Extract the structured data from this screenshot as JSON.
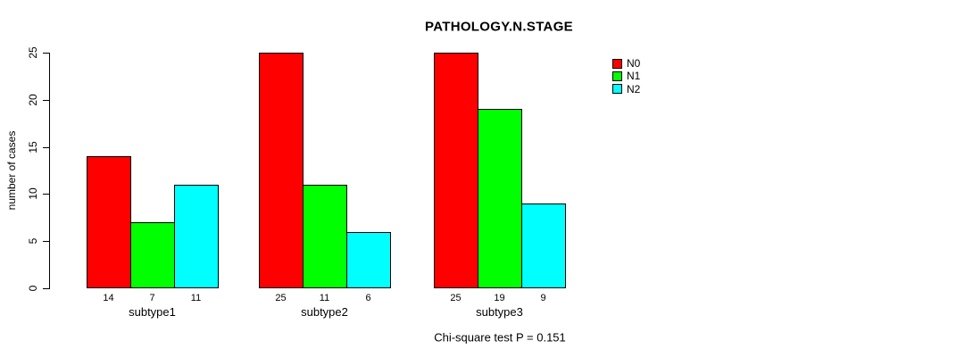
{
  "chart_data": {
    "type": "bar",
    "title": "PATHOLOGY.N.STAGE",
    "ylabel": "number of cases",
    "xlabel": "",
    "categories": [
      "subtype1",
      "subtype2",
      "subtype3"
    ],
    "series": [
      {
        "name": "N0",
        "color": "#FF0000",
        "values": [
          14,
          25,
          25
        ]
      },
      {
        "name": "N1",
        "color": "#00FF00",
        "values": [
          7,
          11,
          19
        ]
      },
      {
        "name": "N2",
        "color": "#00FFFF",
        "values": [
          11,
          6,
          9
        ]
      }
    ],
    "yticks": [
      0,
      5,
      10,
      15,
      20,
      25
    ],
    "ylim": [
      0,
      25
    ],
    "bar_value_labels_shown": true,
    "grid": false,
    "legend_position": "top-right",
    "annotation": "Chi-square test P = 0.151"
  }
}
